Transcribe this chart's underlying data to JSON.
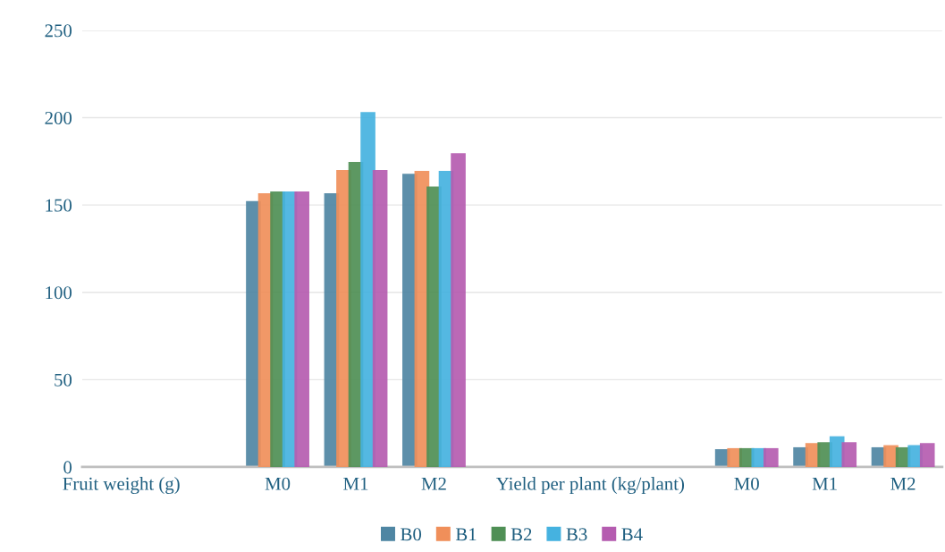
{
  "chart_data": {
    "type": "bar",
    "categories": [
      "Fruit weight (g)",
      null,
      "M0",
      "M1",
      "M2",
      null,
      "Yield per plant (kg/plant)",
      null,
      "M0",
      "M1",
      "M2"
    ],
    "series": [
      {
        "name": "B0",
        "color": "#4f86a3",
        "values": [
          null,
          null,
          152.2,
          156.7,
          167.9,
          null,
          null,
          null,
          10.2,
          11.3,
          11.3
        ]
      },
      {
        "name": "B1",
        "color": "#f08f5a",
        "values": [
          null,
          null,
          156.7,
          170.1,
          169.6,
          null,
          null,
          null,
          10.8,
          13.7,
          12.5
        ]
      },
      {
        "name": "B2",
        "color": "#4f8f55",
        "values": [
          null,
          null,
          157.7,
          174.7,
          160.6,
          null,
          null,
          null,
          10.8,
          14.2,
          11.3
        ]
      },
      {
        "name": "B3",
        "color": "#45b2e0",
        "values": [
          null,
          null,
          157.7,
          203.2,
          169.6,
          null,
          null,
          null,
          10.8,
          17.6,
          12.5
        ]
      },
      {
        "name": "B4",
        "color": "#b55cb0",
        "values": [
          null,
          null,
          157.7,
          170.1,
          179.7,
          null,
          null,
          null,
          10.8,
          14.2,
          13.7
        ]
      }
    ],
    "ylim": [
      0,
      250
    ],
    "yticks": [
      0,
      50,
      100,
      150,
      200,
      250
    ],
    "grid": "y",
    "legend": "bottom"
  }
}
